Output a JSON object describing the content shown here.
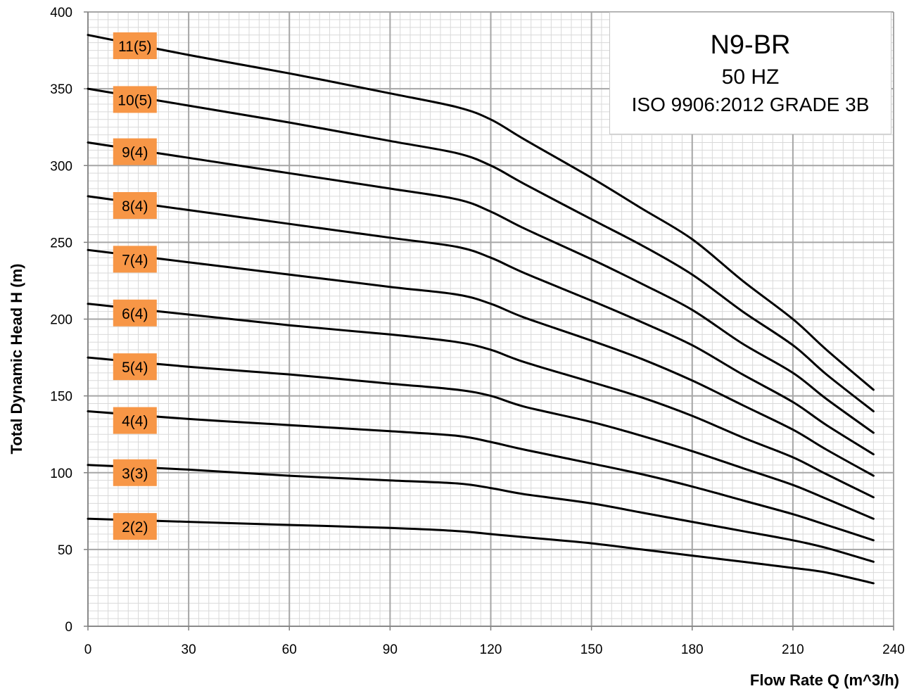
{
  "chart_data": {
    "type": "line",
    "title": "N9-BR",
    "info_box": {
      "title": "N9-BR",
      "frequency": "50 HZ",
      "standard": "ISO 9906:2012  GRADE 3B"
    },
    "xlabel": "Flow Rate Q (m^3/h)",
    "ylabel": "Total Dynamic Head  H (m)",
    "xlim": [
      0,
      240
    ],
    "ylim": [
      0,
      400
    ],
    "x_ticks": [
      0,
      30,
      60,
      90,
      120,
      150,
      180,
      210,
      240
    ],
    "y_ticks": [
      0,
      50,
      100,
      150,
      200,
      250,
      300,
      350,
      400
    ],
    "grid": true,
    "label_color": "#f79646",
    "line_color": "#000000",
    "series": [
      {
        "name": "11(5)",
        "label_y": 378,
        "points": [
          [
            0,
            385
          ],
          [
            30,
            372
          ],
          [
            60,
            360
          ],
          [
            90,
            347
          ],
          [
            110,
            338
          ],
          [
            120,
            330
          ],
          [
            130,
            317
          ],
          [
            150,
            292
          ],
          [
            165,
            272
          ],
          [
            180,
            252
          ],
          [
            195,
            225
          ],
          [
            210,
            200
          ],
          [
            220,
            180
          ],
          [
            234,
            154
          ]
        ]
      },
      {
        "name": "10(5)",
        "label_y": 343,
        "points": [
          [
            0,
            350
          ],
          [
            30,
            339
          ],
          [
            60,
            328
          ],
          [
            90,
            316
          ],
          [
            110,
            308
          ],
          [
            120,
            300
          ],
          [
            130,
            288
          ],
          [
            150,
            265
          ],
          [
            165,
            248
          ],
          [
            180,
            229
          ],
          [
            195,
            205
          ],
          [
            210,
            183
          ],
          [
            220,
            164
          ],
          [
            234,
            140
          ]
        ]
      },
      {
        "name": "9(4)",
        "label_y": 309,
        "points": [
          [
            0,
            315
          ],
          [
            30,
            305
          ],
          [
            60,
            295
          ],
          [
            90,
            285
          ],
          [
            110,
            278
          ],
          [
            120,
            270
          ],
          [
            130,
            259
          ],
          [
            150,
            239
          ],
          [
            165,
            223
          ],
          [
            180,
            206
          ],
          [
            195,
            184
          ],
          [
            210,
            165
          ],
          [
            220,
            148
          ],
          [
            234,
            126
          ]
        ]
      },
      {
        "name": "8(4)",
        "label_y": 274,
        "points": [
          [
            0,
            280
          ],
          [
            30,
            271
          ],
          [
            60,
            262
          ],
          [
            90,
            253
          ],
          [
            110,
            247
          ],
          [
            120,
            240
          ],
          [
            130,
            230
          ],
          [
            150,
            212
          ],
          [
            165,
            198
          ],
          [
            180,
            183
          ],
          [
            195,
            164
          ],
          [
            210,
            146
          ],
          [
            220,
            131
          ],
          [
            234,
            112
          ]
        ]
      },
      {
        "name": "7(4)",
        "label_y": 239,
        "points": [
          [
            0,
            245
          ],
          [
            30,
            237
          ],
          [
            60,
            229
          ],
          [
            90,
            221
          ],
          [
            110,
            216
          ],
          [
            120,
            210
          ],
          [
            130,
            201
          ],
          [
            150,
            186
          ],
          [
            165,
            174
          ],
          [
            180,
            160
          ],
          [
            195,
            144
          ],
          [
            210,
            128
          ],
          [
            220,
            115
          ],
          [
            234,
            98
          ]
        ]
      },
      {
        "name": "6(4)",
        "label_y": 204,
        "points": [
          [
            0,
            210
          ],
          [
            30,
            203
          ],
          [
            60,
            196
          ],
          [
            90,
            190
          ],
          [
            110,
            185
          ],
          [
            120,
            180
          ],
          [
            130,
            172
          ],
          [
            150,
            159
          ],
          [
            165,
            149
          ],
          [
            180,
            137
          ],
          [
            195,
            123
          ],
          [
            210,
            110
          ],
          [
            220,
            99
          ],
          [
            234,
            84
          ]
        ]
      },
      {
        "name": "5(4)",
        "label_y": 169,
        "points": [
          [
            0,
            175
          ],
          [
            30,
            169
          ],
          [
            60,
            164
          ],
          [
            90,
            158
          ],
          [
            110,
            154
          ],
          [
            120,
            150
          ],
          [
            130,
            143
          ],
          [
            150,
            133
          ],
          [
            165,
            124
          ],
          [
            180,
            114
          ],
          [
            195,
            103
          ],
          [
            210,
            92
          ],
          [
            220,
            83
          ],
          [
            234,
            70
          ]
        ]
      },
      {
        "name": "4(4)",
        "label_y": 134,
        "points": [
          [
            0,
            140
          ],
          [
            30,
            135
          ],
          [
            60,
            131
          ],
          [
            90,
            127
          ],
          [
            110,
            124
          ],
          [
            120,
            120
          ],
          [
            130,
            115
          ],
          [
            150,
            106
          ],
          [
            165,
            99
          ],
          [
            180,
            91
          ],
          [
            195,
            82
          ],
          [
            210,
            73
          ],
          [
            220,
            66
          ],
          [
            234,
            56
          ]
        ]
      },
      {
        "name": "3(3)",
        "label_y": 100,
        "points": [
          [
            0,
            105
          ],
          [
            30,
            102
          ],
          [
            60,
            98
          ],
          [
            90,
            95
          ],
          [
            110,
            93
          ],
          [
            120,
            90
          ],
          [
            130,
            86
          ],
          [
            150,
            80
          ],
          [
            165,
            74
          ],
          [
            180,
            68
          ],
          [
            195,
            62
          ],
          [
            210,
            56
          ],
          [
            220,
            51
          ],
          [
            234,
            42
          ]
        ]
      },
      {
        "name": "2(2)",
        "label_y": 65,
        "points": [
          [
            0,
            70
          ],
          [
            30,
            68
          ],
          [
            60,
            66
          ],
          [
            90,
            64
          ],
          [
            110,
            62
          ],
          [
            120,
            60
          ],
          [
            130,
            58
          ],
          [
            150,
            54
          ],
          [
            165,
            50
          ],
          [
            180,
            46
          ],
          [
            195,
            42
          ],
          [
            210,
            38
          ],
          [
            220,
            35
          ],
          [
            234,
            28
          ]
        ]
      }
    ]
  }
}
